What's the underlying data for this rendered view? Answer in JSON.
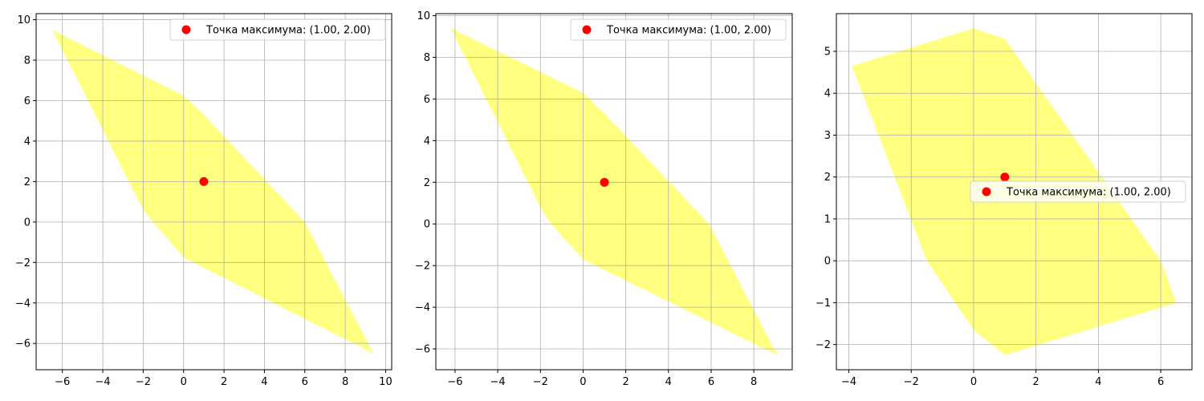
{
  "chart_data": [
    {
      "type": "scatter",
      "title": "",
      "xlabel": "",
      "ylabel": "",
      "xlim": [
        -7.3,
        10.3
      ],
      "ylim": [
        -7.3,
        10.3
      ],
      "xticks": [
        -6,
        -4,
        -2,
        0,
        2,
        4,
        6,
        8,
        10
      ],
      "yticks": [
        -6,
        -4,
        -2,
        0,
        2,
        4,
        6,
        8,
        10
      ],
      "grid": true,
      "legend_position": "top-right",
      "region": {
        "color": "#ffff80",
        "vertices": [
          [
            -6.5,
            9.5
          ],
          [
            0,
            6.25
          ],
          [
            1,
            5.3
          ],
          [
            6,
            0
          ],
          [
            9.4,
            -6.5
          ],
          [
            0,
            -1.75
          ],
          [
            -1.5,
            0
          ],
          [
            -2,
            0.6
          ]
        ]
      },
      "series": [
        {
          "name": "Точка максимума: (1.00, 2.00)",
          "color": "#ff0000",
          "x": [
            1.0
          ],
          "y": [
            2.0
          ]
        }
      ]
    },
    {
      "type": "scatter",
      "title": "",
      "xlabel": "",
      "ylabel": "",
      "xlim": [
        -6.9,
        9.8
      ],
      "ylim": [
        -7.0,
        10.1
      ],
      "xticks": [
        -6,
        -4,
        -2,
        0,
        2,
        4,
        6,
        8
      ],
      "yticks": [
        -6,
        -4,
        -2,
        0,
        2,
        4,
        6,
        8,
        10
      ],
      "grid": true,
      "legend_position": "top-right",
      "region": {
        "color": "#ffff80",
        "vertices": [
          [
            -6.2,
            9.4
          ],
          [
            0,
            6.3
          ],
          [
            1,
            5.3
          ],
          [
            5.9,
            0
          ],
          [
            9.1,
            -6.3
          ],
          [
            0,
            -1.7
          ],
          [
            -1.5,
            0
          ],
          [
            -1.9,
            0.6
          ]
        ]
      },
      "series": [
        {
          "name": "Точка максимума: (1.00, 2.00)",
          "color": "#ff0000",
          "x": [
            1.0
          ],
          "y": [
            2.0
          ]
        }
      ]
    },
    {
      "type": "scatter",
      "title": "",
      "xlabel": "",
      "ylabel": "",
      "xlim": [
        -4.4,
        7.0
      ],
      "ylim": [
        -2.6,
        5.9
      ],
      "xticks": [
        -4,
        -2,
        0,
        2,
        4,
        6
      ],
      "yticks": [
        -2,
        -1,
        0,
        1,
        2,
        3,
        4,
        5
      ],
      "grid": true,
      "legend_position": "center-right",
      "region": {
        "color": "#ffff80",
        "vertices": [
          [
            -3.9,
            4.65
          ],
          [
            0,
            5.55
          ],
          [
            1,
            5.3
          ],
          [
            6,
            0
          ],
          [
            6.5,
            -1.0
          ],
          [
            1,
            -2.25
          ],
          [
            0,
            -1.65
          ],
          [
            -1.5,
            0
          ]
        ]
      },
      "series": [
        {
          "name": "Точка максимума: (1.00, 2.00)",
          "color": "#ff0000",
          "x": [
            1.0
          ],
          "y": [
            2.0
          ]
        }
      ]
    }
  ]
}
